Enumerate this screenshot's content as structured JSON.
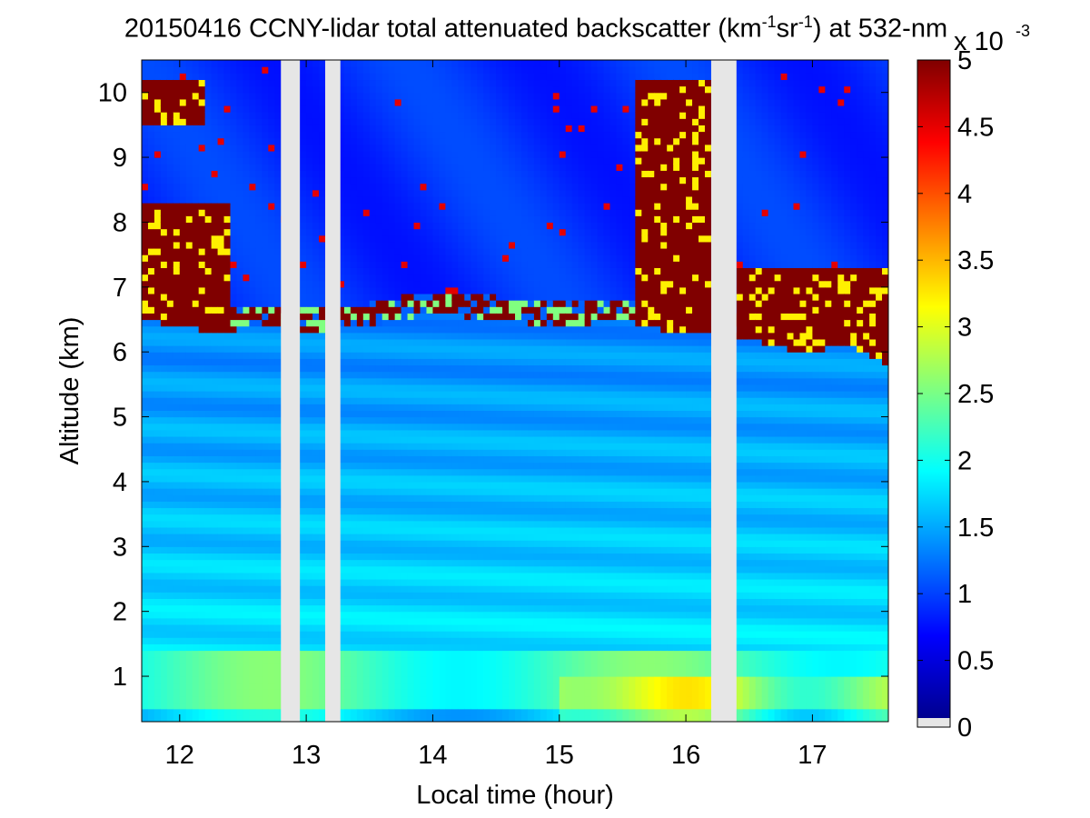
{
  "chart_data": {
    "type": "heatmap",
    "title": {
      "prefix": "20150416 CCNY-lidar total attenuated backscatter (km",
      "sup1": "-1",
      "middle": "sr",
      "sup2": "-1",
      "suffix": ") at 532-nm"
    },
    "xlabel": "Local time (hour)",
    "ylabel": "Altitude (km)",
    "xlim": [
      11.7,
      17.6
    ],
    "ylim": [
      0.3,
      10.5
    ],
    "xticks": [
      12,
      13,
      14,
      15,
      16,
      17
    ],
    "yticks": [
      1,
      2,
      3,
      4,
      5,
      6,
      7,
      8,
      9,
      10
    ],
    "colorbar": {
      "min": 0,
      "max": 5,
      "ticks": [
        "0",
        "0.5",
        "1",
        "1.5",
        "2",
        "2.5",
        "3",
        "3.5",
        "4",
        "4.5",
        "5"
      ],
      "exponent_prefix": "x 10",
      "exponent": "-3",
      "colormap": "jet"
    },
    "no_data_gaps_hours": [
      [
        12.8,
        12.95
      ],
      [
        13.15,
        13.27
      ],
      [
        16.2,
        16.4
      ]
    ],
    "features": {
      "boundary_layer_top_km": 1.4,
      "cloud_base_km": [
        [
          11.7,
          6.5
        ],
        [
          12.3,
          6.3
        ],
        [
          12.6,
          6.4
        ],
        [
          13.0,
          6.3
        ],
        [
          13.5,
          6.4
        ],
        [
          14.0,
          6.6
        ],
        [
          14.5,
          6.5
        ],
        [
          15.0,
          6.4
        ],
        [
          15.5,
          6.5
        ],
        [
          15.9,
          6.3
        ],
        [
          16.5,
          6.2
        ],
        [
          16.9,
          6.0
        ],
        [
          17.3,
          6.1
        ],
        [
          17.6,
          5.8
        ]
      ],
      "dense_cloud_regions": [
        {
          "x0": 11.7,
          "x1": 12.4,
          "y0": 6.3,
          "y1": 8.3
        },
        {
          "x0": 11.7,
          "x1": 12.2,
          "y0": 9.5,
          "y1": 10.2
        },
        {
          "x0": 15.6,
          "x1": 16.2,
          "y0": 6.3,
          "y1": 10.2
        },
        {
          "x0": 16.4,
          "x1": 17.6,
          "y0": 5.8,
          "y1": 7.3
        }
      ]
    },
    "colors": {
      "gap": "#e6e6e6",
      "zero": "#e6e6e6",
      "axis": "#000000"
    }
  }
}
